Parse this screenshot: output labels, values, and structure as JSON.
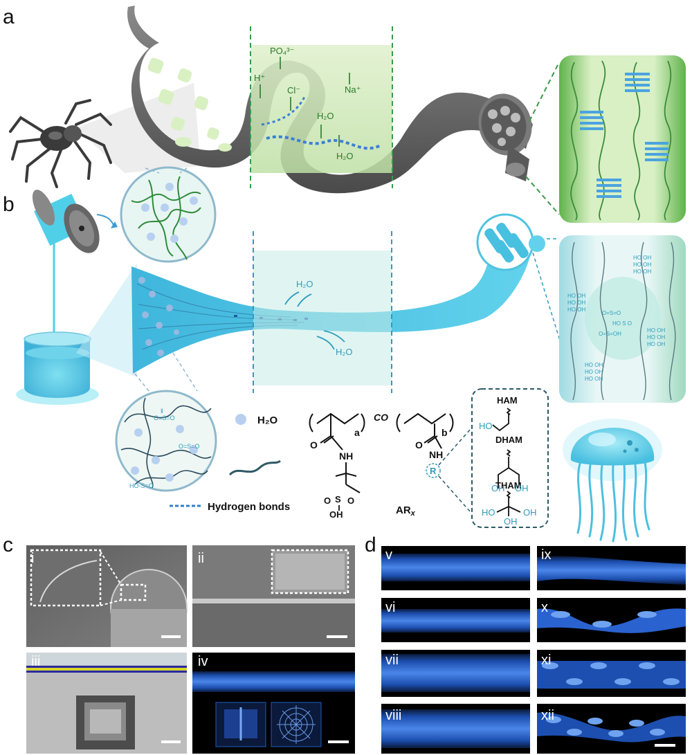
{
  "panels": {
    "a": "a",
    "b": "b",
    "c": "c",
    "d": "d"
  },
  "panel_a": {
    "ions": [
      "PO₄³⁻",
      "H⁺",
      "Cl⁻",
      "Na⁺",
      "H₂O",
      "H₂O"
    ]
  },
  "panel_b": {
    "water": [
      "H₂O",
      "H₂O"
    ],
    "legend": {
      "water": "H₂O",
      "hbonds": "Hydrogen bonds"
    },
    "sulfonate_label": "HO–S(=O)₂",
    "chem": {
      "co": "CO",
      "sub_a": "a",
      "sub_b": "b",
      "polymer": "AR",
      "polymer_sub": "x",
      "R": "R",
      "NH": "NH",
      "O": "O",
      "OH": "OH",
      "monomers": [
        "HAM",
        "DHAM",
        "THAM"
      ],
      "ho": "HO"
    }
  },
  "panel_c": {
    "subpanels": [
      "i",
      "ii",
      "iii",
      "iv"
    ]
  },
  "panel_d": {
    "subpanels": [
      "v",
      "vi",
      "vii",
      "viii",
      "ix",
      "x",
      "xi",
      "xii"
    ]
  },
  "colors": {
    "green_bg": "#cfe8b8",
    "green_line": "#3a9a48",
    "cyan": "#48c6e6",
    "cyan_dark": "#2f9bbd",
    "fiber_blue": "#3b7fe0",
    "gray_body": "#6a6a6a"
  }
}
